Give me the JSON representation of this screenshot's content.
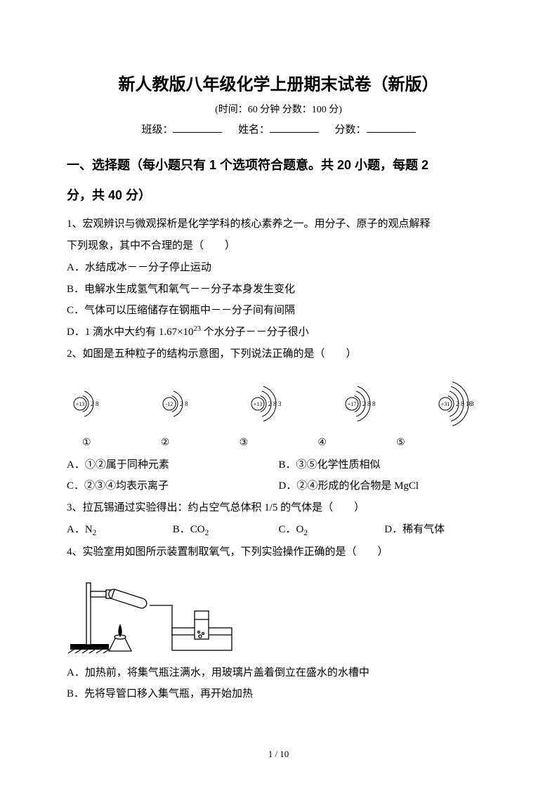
{
  "title": "新人教版八年级化学上册期末试卷（新版）",
  "time_score": "(时间：60 分钟    分数：100 分)",
  "info": {
    "class_label": "班级：",
    "name_label": "姓名：",
    "score_label": "分数："
  },
  "section1": {
    "heading_l1": "一、选择题（每小题只有 1 个选项符合题意。共 20 小题，每题 2",
    "heading_l2": "分，共 40 分）"
  },
  "q1": {
    "stem1": "1、宏观辨识与微观探析是化学学科的核心素养之一。用分子、原子的观点解释",
    "stem2": "下列现象，其中不合理的是（　　）",
    "A": "A．水结成冰－－分子停止运动",
    "B": "B．电解水生成氢气和氧气－－分子本身发生变化",
    "C": "C．气体可以压缩储存在钢瓶中－－分子间有间隔",
    "D_pre": "D．1 滴水中大约有 1.67×10",
    "D_sup": "23",
    "D_post": " 个水分子－－分子很小"
  },
  "q2": {
    "stem": "2、如图是五种粒子的结构示意图，下列说法正确的是（　　）",
    "particles": [
      {
        "nucleus": "+13",
        "shells": [
          "2",
          "8"
        ],
        "label": "①"
      },
      {
        "nucleus": "-12",
        "shells": [
          "2",
          "8"
        ],
        "label": "②"
      },
      {
        "nucleus": "+13",
        "shells": [
          "2",
          "8",
          "3"
        ],
        "label": "③"
      },
      {
        "nucleus": "+17",
        "shells": [
          "2",
          "8",
          "8"
        ],
        "label": "④"
      },
      {
        "nucleus": "+31",
        "shells": [
          "2",
          "8",
          "18",
          "3"
        ],
        "label": "⑤"
      }
    ],
    "A": "A．①②属于同种元素",
    "B": "B．③⑤化学性质相似",
    "C": "C．②③④均表示离子",
    "D": "D．②④形成的化合物是 MgCl"
  },
  "q3": {
    "stem": "3、拉瓦锡通过实验得出：约占空气总体积 1/5 的气体是（　　）",
    "A_pre": "A．N",
    "A_sub": "2",
    "B_pre": "B．CO",
    "B_sub": "2",
    "C_pre": "C．O",
    "C_sub": "2",
    "D": "D．稀有气体"
  },
  "q4": {
    "stem": "4、实验室用如图所示装置制取氧气，下列实验操作正确的是（　　）",
    "A": "A．加热前，将集气瓶注满水，用玻璃片盖着倒立在盛水的水槽中",
    "B": "B．先将导管口移入集气瓶，再开始加热"
  },
  "pager": "1 / 10",
  "style": {
    "stroke": "#000000",
    "bg": "#ffffff",
    "nucleus_r": 9,
    "arc_gap": 7,
    "arc_start": 12,
    "font_arc": 9,
    "font_nuc": 8
  }
}
